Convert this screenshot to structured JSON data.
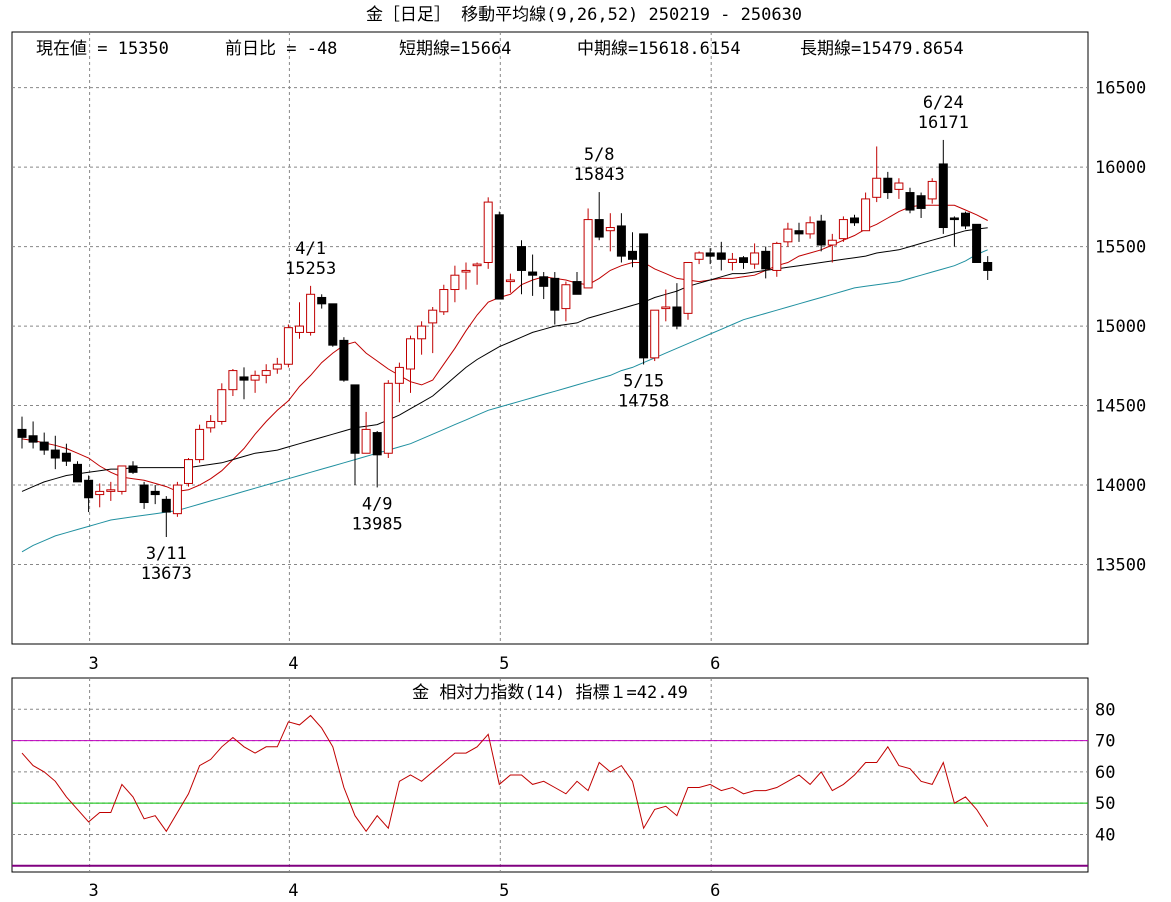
{
  "chart_data": [
    {
      "type": "candlestick",
      "title": "金［日足］ 移動平均線(9,26,52)  250219 - 250630",
      "info": {
        "current": "現在値 = 15350",
        "change": "前日比 = -48",
        "short": "短期線=15664",
        "mid": "中期線=15618.6154",
        "long": "長期線=15479.8654"
      },
      "ylim": [
        13000,
        16850
      ],
      "y_ticks": [
        13500,
        14000,
        14500,
        15000,
        15500,
        16000,
        16500
      ],
      "x_tick_labels": [
        "3",
        "4",
        "5",
        "6"
      ],
      "x_tick_index": [
        6,
        24,
        43,
        62
      ],
      "candles": [
        [
          14350,
          14430,
          14230,
          14300
        ],
        [
          14310,
          14400,
          14230,
          14270
        ],
        [
          14270,
          14330,
          14190,
          14220
        ],
        [
          14220,
          14310,
          14100,
          14170
        ],
        [
          14200,
          14260,
          14120,
          14150
        ],
        [
          14130,
          14150,
          14020,
          14020
        ],
        [
          14030,
          14060,
          13830,
          13920
        ],
        [
          13940,
          14010,
          13860,
          13960
        ],
        [
          13960,
          14020,
          13900,
          13970
        ],
        [
          13960,
          14120,
          13940,
          14120
        ],
        [
          14120,
          14150,
          14070,
          14080
        ],
        [
          14000,
          14020,
          13850,
          13890
        ],
        [
          13960,
          14000,
          13880,
          13940
        ],
        [
          13910,
          13930,
          13673,
          13830
        ],
        [
          13820,
          14020,
          13800,
          14000
        ],
        [
          14010,
          14170,
          13990,
          14160
        ],
        [
          14160,
          14380,
          14140,
          14350
        ],
        [
          14360,
          14440,
          14330,
          14400
        ],
        [
          14400,
          14640,
          14380,
          14600
        ],
        [
          14600,
          14730,
          14560,
          14720
        ],
        [
          14680,
          14740,
          14540,
          14660
        ],
        [
          14660,
          14720,
          14580,
          14690
        ],
        [
          14690,
          14760,
          14640,
          14720
        ],
        [
          14730,
          14800,
          14700,
          14760
        ],
        [
          14760,
          15010,
          14740,
          14990
        ],
        [
          14960,
          15150,
          14920,
          15000
        ],
        [
          14960,
          15253,
          14940,
          15200
        ],
        [
          15180,
          15200,
          15110,
          15140
        ],
        [
          15140,
          15140,
          14870,
          14880
        ],
        [
          14910,
          14930,
          14650,
          14660
        ],
        [
          14630,
          14630,
          14000,
          14200
        ],
        [
          14200,
          14460,
          14200,
          14350
        ],
        [
          14330,
          14340,
          13985,
          14190
        ],
        [
          14200,
          14660,
          14170,
          14640
        ],
        [
          14640,
          14770,
          14520,
          14740
        ],
        [
          14730,
          14940,
          14580,
          14920
        ],
        [
          14920,
          15030,
          14820,
          15000
        ],
        [
          15020,
          15120,
          14830,
          15100
        ],
        [
          15090,
          15260,
          15070,
          15230
        ],
        [
          15230,
          15380,
          15150,
          15320
        ],
        [
          15340,
          15400,
          15230,
          15350
        ],
        [
          15380,
          15400,
          15260,
          15390
        ],
        [
          15400,
          15810,
          15360,
          15780
        ],
        [
          15700,
          15720,
          15170,
          15170
        ],
        [
          15280,
          15330,
          15210,
          15290
        ],
        [
          15500,
          15540,
          15200,
          15350
        ],
        [
          15340,
          15450,
          15190,
          15320
        ],
        [
          15310,
          15340,
          15170,
          15250
        ],
        [
          15300,
          15340,
          15010,
          15100
        ],
        [
          15110,
          15280,
          15030,
          15260
        ],
        [
          15280,
          15340,
          15210,
          15200
        ],
        [
          15240,
          15740,
          15240,
          15670
        ],
        [
          15670,
          15843,
          15540,
          15560
        ],
        [
          15600,
          15710,
          15470,
          15620
        ],
        [
          15630,
          15710,
          15400,
          15440
        ],
        [
          15470,
          15590,
          15370,
          15420
        ],
        [
          15580,
          15580,
          14758,
          14800
        ],
        [
          14800,
          15100,
          14780,
          15100
        ],
        [
          15110,
          15230,
          15030,
          15120
        ],
        [
          15120,
          15270,
          14980,
          15000
        ],
        [
          15080,
          15400,
          15040,
          15400
        ],
        [
          15420,
          15470,
          15390,
          15460
        ],
        [
          15460,
          15490,
          15390,
          15440
        ],
        [
          15460,
          15530,
          15350,
          15420
        ],
        [
          15400,
          15460,
          15350,
          15420
        ],
        [
          15430,
          15440,
          15360,
          15400
        ],
        [
          15390,
          15520,
          15360,
          15460
        ],
        [
          15470,
          15500,
          15300,
          15360
        ],
        [
          15350,
          15530,
          15310,
          15520
        ],
        [
          15530,
          15650,
          15500,
          15610
        ],
        [
          15600,
          15650,
          15530,
          15580
        ],
        [
          15580,
          15690,
          15550,
          15650
        ],
        [
          15660,
          15700,
          15470,
          15510
        ],
        [
          15510,
          15580,
          15400,
          15540
        ],
        [
          15550,
          15690,
          15530,
          15670
        ],
        [
          15680,
          15700,
          15630,
          15650
        ],
        [
          15600,
          15840,
          15600,
          15800
        ],
        [
          15810,
          16130,
          15780,
          15930
        ],
        [
          15930,
          15970,
          15800,
          15840
        ],
        [
          15860,
          15930,
          15800,
          15900
        ],
        [
          15840,
          15870,
          15710,
          15730
        ],
        [
          15820,
          15840,
          15680,
          15740
        ],
        [
          15800,
          15930,
          15770,
          15910
        ],
        [
          16020,
          16171,
          15580,
          15620
        ],
        [
          15680,
          15690,
          15500,
          15670
        ],
        [
          15710,
          15720,
          15610,
          15630
        ],
        [
          15640,
          15640,
          15420,
          15400
        ],
        [
          15400,
          15440,
          15290,
          15350
        ]
      ],
      "series": [
        {
          "name": "短期線",
          "color": "#c00000",
          "values": [
            14290,
            14280,
            14265,
            14250,
            14230,
            14200,
            14170,
            14120,
            14080,
            14050,
            14040,
            14030,
            14010,
            13990,
            13960,
            13970,
            14000,
            14040,
            14090,
            14160,
            14230,
            14320,
            14400,
            14470,
            14530,
            14620,
            14690,
            14770,
            14830,
            14880,
            14900,
            14830,
            14780,
            14730,
            14690,
            14650,
            14630,
            14660,
            14760,
            14860,
            14970,
            15070,
            15150,
            15180,
            15200,
            15260,
            15290,
            15310,
            15300,
            15290,
            15270,
            15260,
            15300,
            15350,
            15380,
            15400,
            15400,
            15360,
            15330,
            15300,
            15290,
            15280,
            15290,
            15300,
            15300,
            15310,
            15320,
            15350,
            15380,
            15400,
            15440,
            15460,
            15480,
            15510,
            15540,
            15570,
            15610,
            15640,
            15680,
            15720,
            15750,
            15760,
            15760,
            15760,
            15760,
            15730,
            15700,
            15664
          ]
        },
        {
          "name": "中期線",
          "color": "#000000",
          "values": [
            13960,
            13990,
            14020,
            14040,
            14060,
            14070,
            14080,
            14090,
            14100,
            14100,
            14110,
            14110,
            14110,
            14110,
            14110,
            14110,
            14120,
            14130,
            14140,
            14160,
            14180,
            14200,
            14210,
            14220,
            14240,
            14260,
            14280,
            14300,
            14320,
            14340,
            14360,
            14370,
            14380,
            14410,
            14440,
            14480,
            14520,
            14560,
            14620,
            14680,
            14740,
            14790,
            14830,
            14870,
            14900,
            14930,
            14960,
            14980,
            15000,
            15010,
            15020,
            15050,
            15070,
            15090,
            15110,
            15130,
            15150,
            15180,
            15200,
            15220,
            15250,
            15270,
            15290,
            15310,
            15330,
            15330,
            15340,
            15350,
            15360,
            15370,
            15380,
            15390,
            15400,
            15410,
            15420,
            15430,
            15440,
            15460,
            15470,
            15480,
            15500,
            15520,
            15540,
            15560,
            15580,
            15600,
            15610,
            15618
          ]
        },
        {
          "name": "長期線",
          "color": "#2090a0",
          "values": [
            13580,
            13620,
            13650,
            13680,
            13700,
            13720,
            13740,
            13760,
            13780,
            13790,
            13800,
            13810,
            13820,
            13830,
            13840,
            13860,
            13880,
            13900,
            13920,
            13940,
            13960,
            13980,
            14000,
            14020,
            14040,
            14060,
            14080,
            14100,
            14120,
            14140,
            14160,
            14180,
            14200,
            14220,
            14240,
            14260,
            14290,
            14320,
            14350,
            14380,
            14410,
            14440,
            14470,
            14490,
            14510,
            14530,
            14550,
            14570,
            14590,
            14610,
            14630,
            14650,
            14670,
            14690,
            14720,
            14740,
            14770,
            14800,
            14830,
            14860,
            14890,
            14920,
            14950,
            14980,
            15010,
            15040,
            15060,
            15080,
            15100,
            15120,
            15140,
            15160,
            15180,
            15200,
            15220,
            15240,
            15250,
            15260,
            15270,
            15280,
            15300,
            15320,
            15340,
            15360,
            15380,
            15410,
            15450,
            15480
          ]
        }
      ],
      "annotations": [
        {
          "date": "3/11",
          "value": "13673",
          "index": 13,
          "position": "below"
        },
        {
          "date": "4/1",
          "value": "15253",
          "index": 26,
          "position": "above"
        },
        {
          "date": "4/9",
          "value": "13985",
          "index": 32,
          "position": "below"
        },
        {
          "date": "5/8",
          "value": "15843",
          "index": 52,
          "position": "above"
        },
        {
          "date": "5/15",
          "value": "14758",
          "index": 56,
          "position": "below"
        },
        {
          "date": "6/24",
          "value": "16171",
          "index": 83,
          "position": "above"
        }
      ]
    },
    {
      "type": "line",
      "title": "金     相対力指数(14) 指標１=42.49",
      "ylim": [
        28,
        90
      ],
      "y_ticks": [
        40,
        50,
        60,
        70,
        80
      ],
      "x_tick_labels": [
        "3",
        "4",
        "5",
        "6"
      ],
      "reference_lines": [
        {
          "value": 70,
          "color": "#c000c0"
        },
        {
          "value": 50,
          "color": "#00c000"
        },
        {
          "value": 30,
          "color": "#800080"
        }
      ],
      "series": [
        {
          "name": "指標１",
          "color": "#c00000",
          "values": [
            66,
            62,
            60,
            57,
            52,
            48,
            44,
            47,
            47,
            56,
            52,
            45,
            46,
            41,
            47,
            53,
            62,
            64,
            68,
            71,
            68,
            66,
            68,
            68,
            76,
            75,
            78,
            74,
            68,
            55,
            46,
            41,
            46,
            42,
            57,
            59,
            57,
            60,
            63,
            66,
            66,
            68,
            72,
            56,
            59,
            59,
            56,
            57,
            55,
            53,
            57,
            54,
            63,
            60,
            62,
            57,
            42,
            48,
            49,
            46,
            55,
            55,
            56,
            54,
            55,
            53,
            54,
            54,
            55,
            57,
            59,
            56,
            60,
            54,
            56,
            59,
            63,
            63,
            68,
            62,
            61,
            57,
            56,
            63,
            50,
            52,
            48,
            42.49
          ]
        }
      ]
    }
  ]
}
